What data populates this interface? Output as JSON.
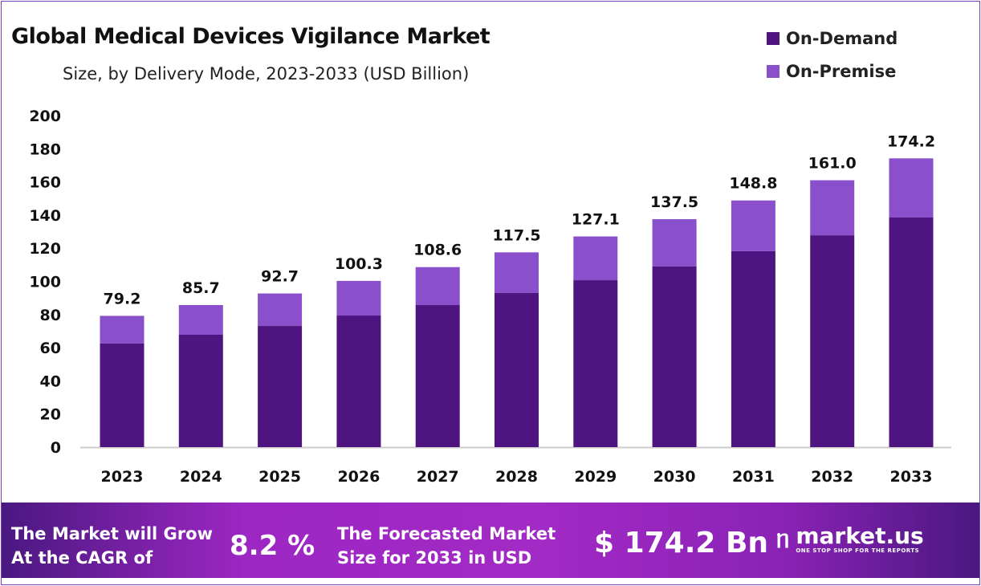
{
  "chart_data": {
    "type": "bar",
    "stacked": true,
    "title": "Global Medical Devices Vigilance Market",
    "subtitle": "Size, by Delivery Mode, 2023-2033 (USD Billion)",
    "xlabel": "",
    "ylabel": "",
    "ylim": [
      0,
      200
    ],
    "yticks": [
      0,
      20,
      40,
      60,
      80,
      100,
      120,
      140,
      160,
      180,
      200
    ],
    "categories": [
      "2023",
      "2024",
      "2025",
      "2026",
      "2027",
      "2028",
      "2029",
      "2030",
      "2031",
      "2032",
      "2033"
    ],
    "series": [
      {
        "name": "On-Demand",
        "color": "#4E1580",
        "values": [
          62.5,
          67.8,
          73.1,
          79.4,
          85.7,
          93.0,
          100.7,
          109.0,
          118.2,
          127.8,
          138.5
        ]
      },
      {
        "name": "On-Premise",
        "color": "#8A4FCB",
        "values": [
          16.7,
          17.9,
          19.6,
          20.9,
          22.9,
          24.5,
          26.4,
          28.5,
          30.6,
          33.2,
          35.7
        ]
      }
    ],
    "totals": [
      "79.2",
      "85.7",
      "92.7",
      "100.3",
      "108.6",
      "117.5",
      "127.1",
      "137.5",
      "148.8",
      "161.0",
      "174.2"
    ],
    "legend_position": "top-right",
    "grid": false
  },
  "footer": {
    "cagr_text_1": "The Market will Grow",
    "cagr_text_2": "At the CAGR of",
    "cagr_value": "8.2 %",
    "forecast_text_1": "The Forecasted Market",
    "forecast_text_2": "Size for 2033 in USD",
    "forecast_value": "$ 174.2 Bn",
    "logo_name": "market.us",
    "logo_tagline": "ONE STOP SHOP FOR THE REPORTS"
  }
}
